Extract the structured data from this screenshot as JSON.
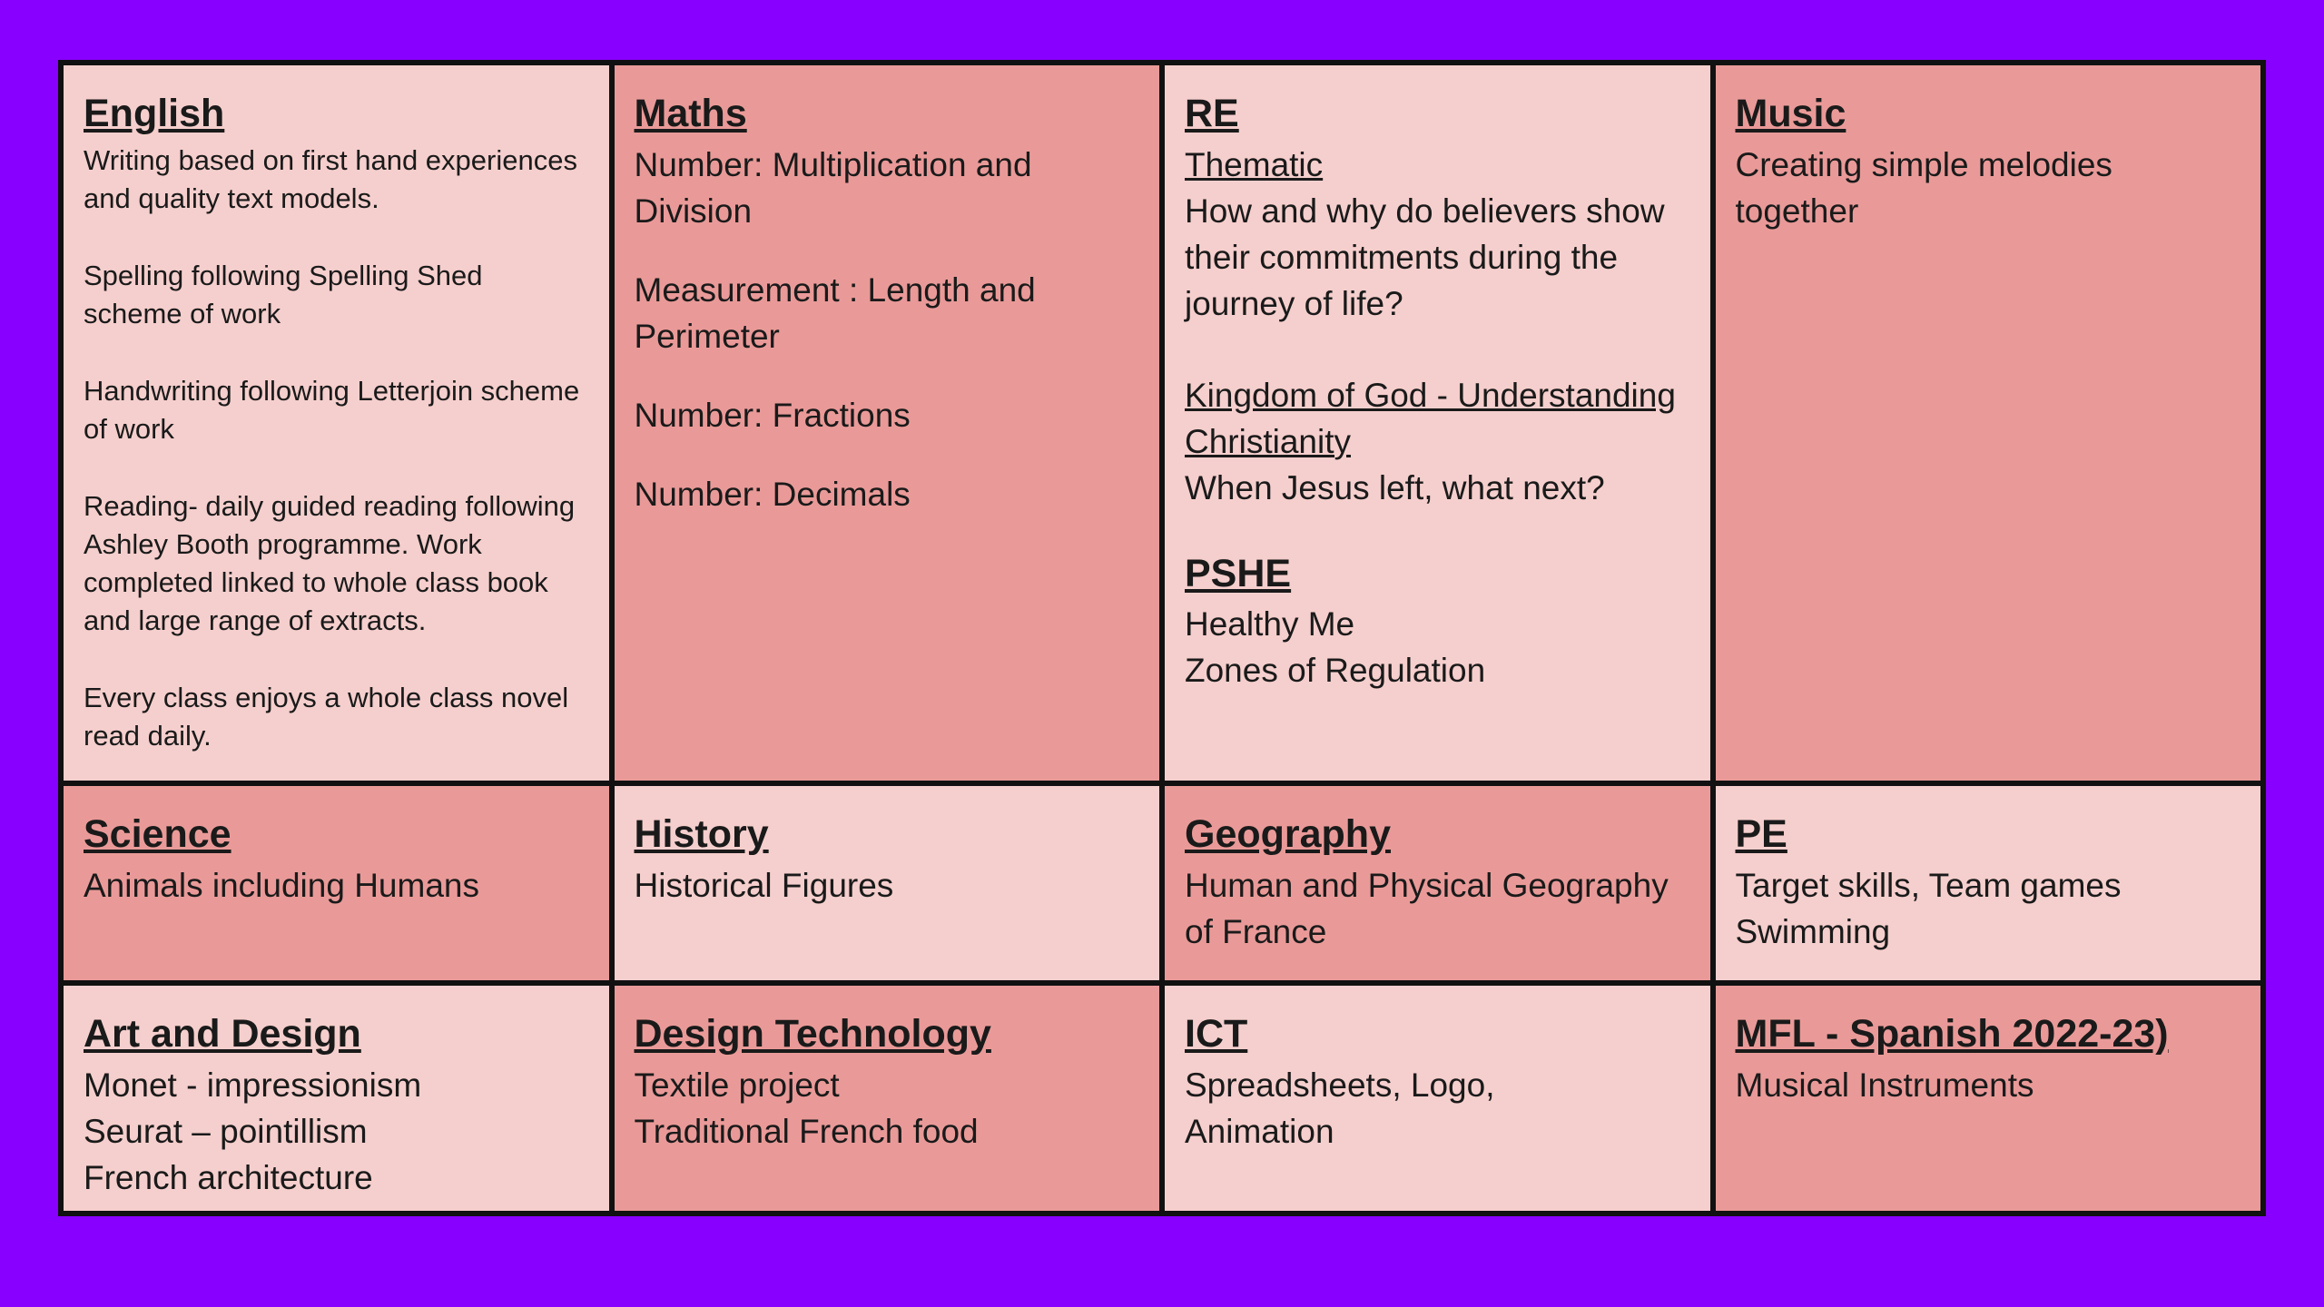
{
  "english": {
    "title": "English",
    "items": [
      "Writing based on first hand experiences and quality text models.",
      "Spelling following  Spelling Shed scheme of work",
      "Handwriting following Letterjoin scheme of work",
      "Reading- daily guided reading following Ashley Booth programme. Work completed linked to whole class book and large range of extracts.",
      "Every class enjoys a whole class novel read daily."
    ]
  },
  "maths": {
    "title": "Maths",
    "items": [
      "Number: Multiplication and Division",
      "Measurement : Length and Perimeter",
      "Number: Fractions",
      "Number: Decimals"
    ]
  },
  "re": {
    "title": "RE",
    "thematic_label": "Thematic",
    "thematic_text": "How and why do believers show their commitments during the journey of life?",
    "kingdom_label": "Kingdom of God - Understanding Christianity",
    "kingdom_text": "When Jesus left, what next?"
  },
  "pshe": {
    "title": "PSHE",
    "items": [
      "Healthy Me",
      "Zones of Regulation"
    ]
  },
  "music": {
    "title": "Music",
    "text": "Creating simple melodies together"
  },
  "science": {
    "title": "Science",
    "text": "Animals including Humans"
  },
  "history": {
    "title": "History",
    "text": "Historical Figures"
  },
  "geography": {
    "title": "Geography",
    "text": "Human and Physical Geography of France"
  },
  "pe": {
    "title": "PE",
    "items": [
      "Target skills, Team games",
      "Swimming"
    ]
  },
  "art": {
    "title": "Art and Design",
    "items": [
      "Monet - impressionism",
      "Seurat – pointillism",
      "French architecture"
    ]
  },
  "dt": {
    "title": "Design Technology",
    "items": [
      "Textile project",
      "Traditional French food"
    ]
  },
  "ict": {
    "title": "ICT",
    "text": "Spreadsheets, Logo, Animation"
  },
  "mfl": {
    "title": "MFL - Spanish 2022-23)",
    "text": "Musical Instruments"
  },
  "colors": {
    "background": "#8800ff",
    "cell_light": "#f5cfcd",
    "cell_dark": "#e99a98",
    "border": "#111111"
  }
}
